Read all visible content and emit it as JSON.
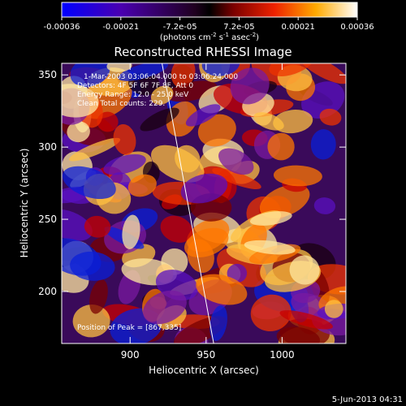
{
  "chart_data": {
    "type": "heatmap",
    "title": "Reconstructed RHESSI Image",
    "xlabel": "Heliocentric X (arcsec)",
    "ylabel": "Heliocentric Y (arcsec)",
    "xlim": [
      855,
      1042
    ],
    "ylim": [
      164,
      358
    ],
    "xticks": [
      900,
      950,
      1000
    ],
    "yticks": [
      200,
      250,
      300,
      350
    ],
    "colorbar": {
      "ticks": [
        "-0.00036",
        "-0.00021",
        "-7.2e-05",
        "7.2e-05",
        "0.00021",
        "0.00036"
      ],
      "label_main": "(photons cm",
      "label_exp1": "-2",
      "label_mid": " s",
      "label_exp2": "-1",
      "label_end": " asec",
      "label_exp3": "-2",
      "label_close": ")",
      "range": [
        -0.00036,
        0.00036
      ]
    },
    "annotations": {
      "time": "1-Mar-2003 03:06:04.000 to 03:06:24.000",
      "detectors": "Detectors: 4F 5F 6F 7F 8F, Att 0",
      "energy": "Energy Range: 12.0 - 25.0 keV",
      "clean": "Clean    Total counts: 229.",
      "peak": "Position of Peak = [867,335]"
    },
    "limb_line": [
      [
        921,
        358
      ],
      [
        955,
        164
      ]
    ],
    "footer": "5-Jun-2013 04:31"
  }
}
